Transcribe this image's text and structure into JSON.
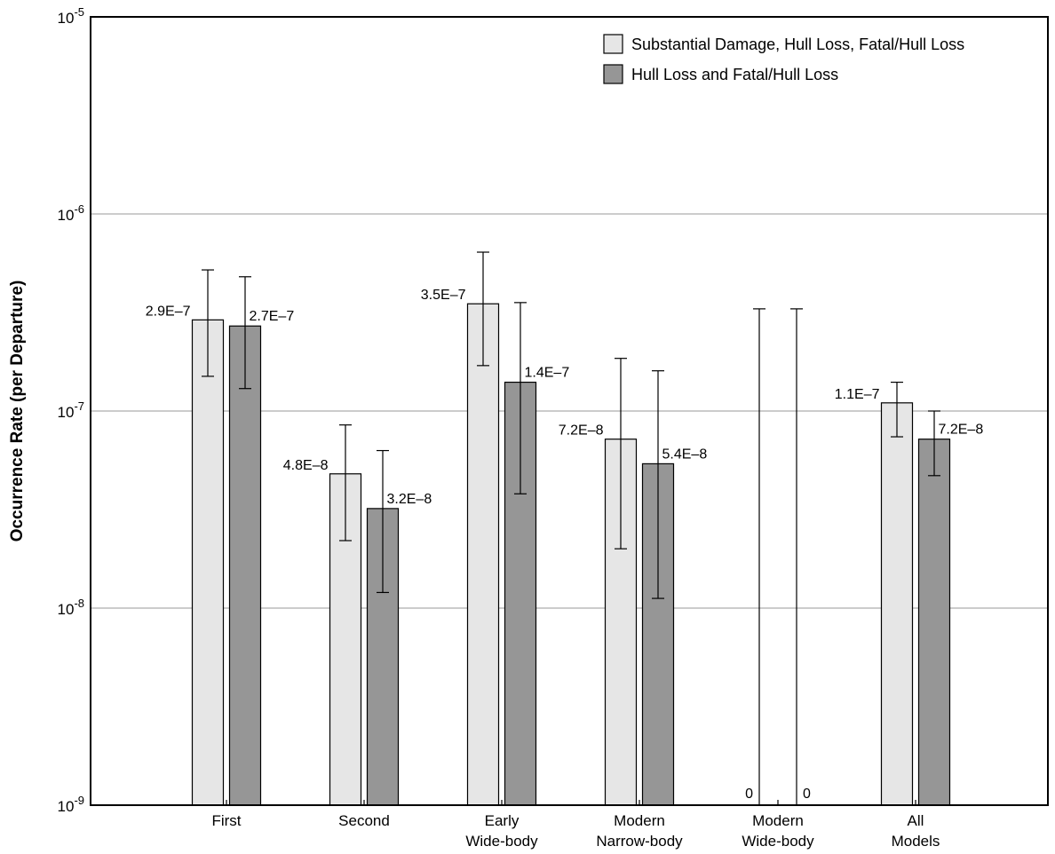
{
  "chart_data": {
    "type": "bar",
    "title": "",
    "xlabel": "",
    "ylabel": "Occurrence Rate (per Departure)",
    "yscale": "log",
    "ylim": [
      1e-09,
      1e-05
    ],
    "grid": true,
    "legend_position": "top-right",
    "yticks": [
      {
        "base": "10",
        "exp": "-9"
      },
      {
        "base": "10",
        "exp": "-8"
      },
      {
        "base": "10",
        "exp": "-7"
      },
      {
        "base": "10",
        "exp": "-6"
      },
      {
        "base": "10",
        "exp": "-5"
      }
    ],
    "categories": [
      [
        "First"
      ],
      [
        "Second"
      ],
      [
        "Early",
        "Wide-body"
      ],
      [
        "Modern",
        "Narrow-body"
      ],
      [
        "Modern",
        "Wide-body"
      ],
      [
        "All",
        "Models"
      ]
    ],
    "series": [
      {
        "name": "Substantial Damage, Hull Loss, Fatal/Hull Loss",
        "color": "#e6e6e6",
        "values": [
          2.9e-07,
          4.8e-08,
          3.5e-07,
          7.2e-08,
          0,
          1.1e-07
        ],
        "labels": [
          "2.9E–7",
          "4.8E–8",
          "3.5E–7",
          "7.2E–8",
          "0",
          "1.1E–7"
        ],
        "err_low": [
          1.5e-07,
          2.2e-08,
          1.7e-07,
          2e-08,
          null,
          7.4e-08
        ],
        "err_high": [
          5.2e-07,
          8.5e-08,
          6.4e-07,
          1.85e-07,
          3.3e-07,
          1.4e-07
        ]
      },
      {
        "name": "Hull Loss and Fatal/Hull Loss",
        "color": "#969696",
        "values": [
          2.7e-07,
          3.2e-08,
          1.4e-07,
          5.4e-08,
          0,
          7.2e-08
        ],
        "labels": [
          "2.7E–7",
          "3.2E–8",
          "1.4E–7",
          "5.4E–8",
          "0",
          "7.2E–8"
        ],
        "err_low": [
          1.3e-07,
          1.2e-08,
          3.8e-08,
          1.12e-08,
          null,
          4.7e-08
        ],
        "err_high": [
          4.8e-07,
          6.3e-08,
          3.55e-07,
          1.6e-07,
          3.3e-07,
          1e-07
        ]
      }
    ]
  }
}
